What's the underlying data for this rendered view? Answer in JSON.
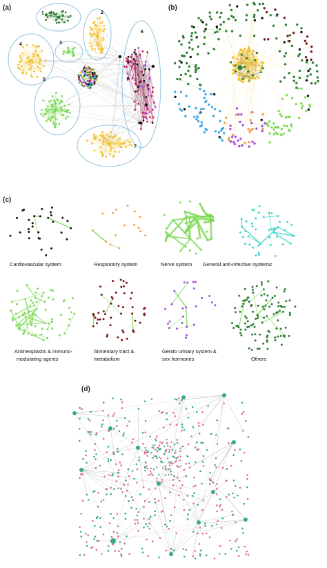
{
  "panels": {
    "a": {
      "label": "(a)",
      "cluster_labels": [
        "1",
        "2",
        "3",
        "4",
        "5",
        "6",
        "7"
      ]
    },
    "b": {
      "label": "(b)"
    },
    "c": {
      "label": "(c)",
      "categories": [
        "Cardiovascular system",
        "Respiratory system",
        "Nerve system",
        "General anti-infective systemic",
        "Antineoplastic & immuno-",
        "modulating agents",
        "Alimentary tract &",
        "metabolism",
        "Genito urinary system &",
        "sex hormones",
        "Others"
      ]
    },
    "d": {
      "label": "(d)"
    }
  },
  "colors": {
    "dark_green": "#2e7d32",
    "yellow": "#f2c230",
    "light_green": "#7ed957",
    "black": "#111111",
    "magenta": "#c2185b",
    "purple": "#a64ee0",
    "blue": "#3fa9e0",
    "orange": "#f0a04b",
    "cyan": "#41d5c9",
    "maroon": "#7a1616",
    "teal": "#3aaa80",
    "pink": "#e06a8e",
    "ellipse": "#8fc3dd",
    "edge_grey": "#9a9a9a"
  }
}
